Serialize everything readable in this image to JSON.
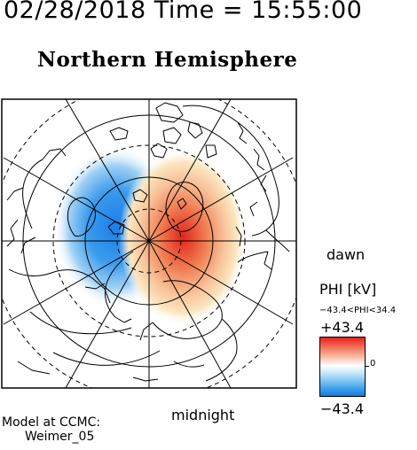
{
  "header": {
    "datetime": "02/28/2018 Time = 15:55:00",
    "title": "Northern Hemisphere"
  },
  "map": {
    "label_right": "dawn",
    "label_bottom": "midnight",
    "potential_cells": [
      {
        "name": "negative",
        "color": "#3399ee"
      },
      {
        "name": "positive",
        "color": "#ee3322"
      }
    ],
    "land_color": "#000000"
  },
  "colorbar": {
    "title": "PHI [kV]",
    "range_text": "−43.4<PHI<34.4",
    "max_label": "+43.4",
    "min_label": "−43.4",
    "zero_label": "0",
    "colors": [
      "#e8201c",
      "#f7a688",
      "#ffffff",
      "#bfe5fb",
      "#1a78e0"
    ]
  },
  "credit": {
    "line1": "Model at CCMC:",
    "line2": "Weimer_05"
  }
}
